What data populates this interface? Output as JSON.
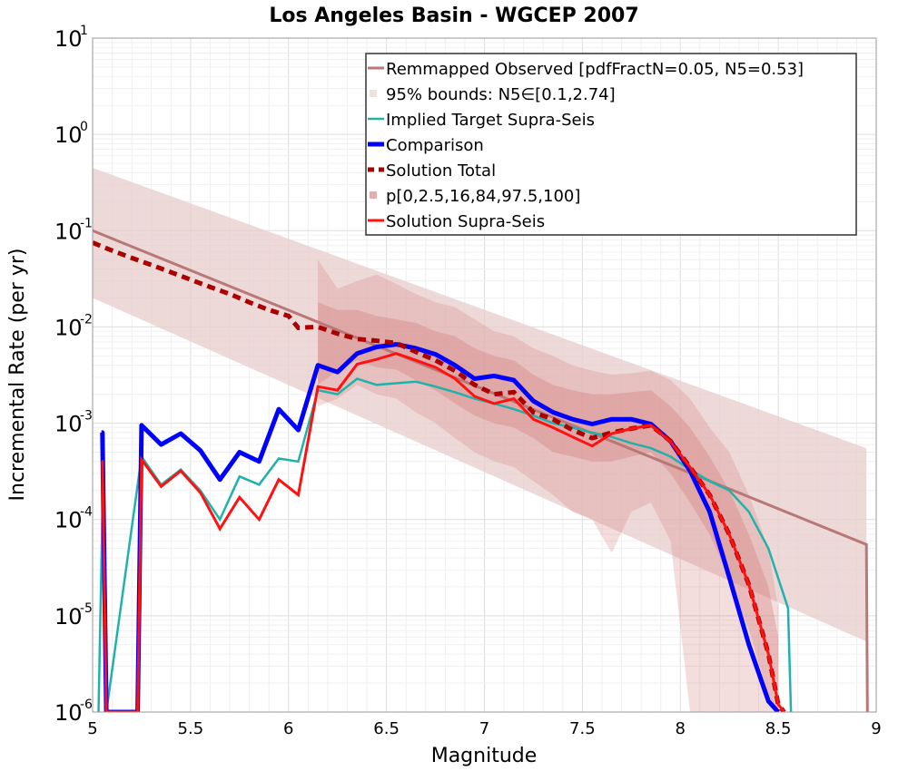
{
  "chart_data": {
    "type": "line",
    "title": "Los Angeles Basin - WGCEP 2007",
    "xlabel": "Magnitude",
    "ylabel": "Incremental Rate (per yr)",
    "xlim": [
      5,
      9
    ],
    "ylim_log10": [
      -6,
      1
    ],
    "xticks": [
      5,
      5.5,
      6,
      6.5,
      7,
      7.5,
      8,
      8.5,
      9
    ],
    "xtick_labels": [
      "5",
      "5.5",
      "6",
      "6.5",
      "7",
      "7.5",
      "8",
      "8.5",
      "9"
    ],
    "ytick_base": "10",
    "ytick_exponents": [
      "1",
      "0",
      "-1",
      "-2",
      "-3",
      "-4",
      "-5",
      "-6"
    ],
    "grid": true,
    "legend_position": "top-right",
    "legend": [
      "Remmapped Observed [pdfFractN=0.05, N5=0.53]",
      "95% bounds: N5∈[0.1,2.74]",
      "Implied Target Supra-Seis",
      "Comparison",
      "Solution Total",
      "p[0,2.5,16,84,97.5,100]",
      "Solution Supra-Seis"
    ],
    "colors": {
      "observed": "#b87878",
      "bounds": "#e8cccc",
      "target": "#20b2aa",
      "comparison": "#0000ff",
      "comparison_tail": "#3300cc",
      "total": "#aa0000",
      "percentile": "#d47878",
      "supra": "#ff1111"
    },
    "series": [
      {
        "name": "Remmapped Observed [pdfFractN=0.05, N5=0.53]",
        "x": [
          5.0,
          8.95,
          8.955
        ],
        "y": [
          0.1,
          5.5e-05,
          1e-06
        ]
      },
      {
        "name": "95% bounds: N5∈[0.1,2.74]",
        "x": [
          5.0,
          8.95
        ],
        "upper": [
          0.45,
          0.00055
        ],
        "lower": [
          0.02,
          5.4e-06
        ]
      },
      {
        "name": "Implied Target Supra-Seis",
        "x": [
          5.03,
          5.05,
          5.07,
          5.25,
          5.35,
          5.45,
          5.55,
          5.65,
          5.75,
          5.85,
          5.95,
          6.05,
          6.15,
          6.25,
          6.35,
          6.45,
          6.55,
          6.65,
          6.75,
          6.85,
          6.95,
          7.05,
          7.15,
          7.25,
          7.35,
          7.45,
          7.55,
          7.65,
          7.75,
          7.85,
          7.95,
          8.05,
          8.15,
          8.25,
          8.35,
          8.45,
          8.55,
          8.565
        ],
        "y": [
          1e-06,
          0.00012,
          1e-06,
          0.00045,
          0.00023,
          0.00033,
          0.0002,
          0.0001,
          0.00028,
          0.00023,
          0.00043,
          0.0004,
          0.0022,
          0.002,
          0.0029,
          0.0025,
          0.0026,
          0.0027,
          0.0024,
          0.0021,
          0.0018,
          0.0016,
          0.0014,
          0.0012,
          0.001,
          0.0009,
          0.0008,
          0.00072,
          0.00062,
          0.00055,
          0.00045,
          0.00033,
          0.00025,
          0.0002,
          0.00012,
          5e-05,
          1.2e-05,
          1e-06
        ]
      },
      {
        "name": "Comparison",
        "x": [
          5.045,
          5.05,
          5.07,
          5.23,
          5.25,
          5.35,
          5.45,
          5.55,
          5.65,
          5.75,
          5.85,
          5.95,
          6.05,
          6.15,
          6.25,
          6.35,
          6.45,
          6.55,
          6.65,
          6.75,
          6.85,
          6.95,
          7.05,
          7.15,
          7.25,
          7.35,
          7.45,
          7.55,
          7.65,
          7.75,
          7.85,
          7.95,
          8.05,
          8.15,
          8.25,
          8.35,
          8.45,
          8.5
        ],
        "y": [
          0.0008,
          0.0008,
          1e-06,
          1e-06,
          0.00095,
          0.0006,
          0.00078,
          0.00052,
          0.00026,
          0.0005,
          0.0004,
          0.0014,
          0.00085,
          0.004,
          0.0034,
          0.0053,
          0.0062,
          0.0066,
          0.006,
          0.0052,
          0.004,
          0.0029,
          0.0031,
          0.0028,
          0.0017,
          0.0013,
          0.0011,
          0.00098,
          0.0011,
          0.0011,
          0.00098,
          0.00065,
          0.00032,
          0.00012,
          2.5e-05,
          5e-06,
          1.3e-06,
          1e-06
        ]
      },
      {
        "name": "Solution Total",
        "x": [
          5.0,
          5.1,
          5.2,
          5.3,
          5.4,
          5.5,
          5.6,
          5.7,
          5.8,
          5.9,
          6.0,
          6.05,
          6.15,
          6.25,
          6.35,
          6.45,
          6.55,
          6.65,
          6.75,
          6.85,
          6.95,
          7.05,
          7.15,
          7.25,
          7.35,
          7.45,
          7.55,
          7.65,
          7.75,
          7.85,
          7.95,
          8.05,
          8.15,
          8.25,
          8.35,
          8.45,
          8.5,
          8.53
        ],
        "y": [
          0.075,
          0.062,
          0.052,
          0.044,
          0.037,
          0.031,
          0.026,
          0.022,
          0.018,
          0.015,
          0.013,
          0.0098,
          0.01,
          0.0085,
          0.0075,
          0.0072,
          0.0068,
          0.0055,
          0.0045,
          0.0035,
          0.0025,
          0.002,
          0.0021,
          0.0013,
          0.0011,
          0.00085,
          0.0007,
          0.0008,
          0.00088,
          0.00095,
          0.00065,
          0.00035,
          0.00018,
          7e-05,
          2.1e-05,
          4e-06,
          1.2e-06,
          1e-06
        ]
      },
      {
        "name": "p[0,2.5,16,84,97.5,100]",
        "x": [
          6.15,
          6.25,
          6.35,
          6.45,
          6.55,
          6.65,
          6.75,
          6.85,
          6.95,
          7.05,
          7.15,
          7.25,
          7.35,
          7.45,
          7.55,
          7.65,
          7.75,
          7.85,
          7.95,
          8.05,
          8.15,
          8.25,
          8.35,
          8.45,
          8.5
        ],
        "p16": [
          0.0025,
          0.0035,
          0.0045,
          0.0038,
          0.0036,
          0.0028,
          0.0022,
          0.0016,
          0.0012,
          0.001,
          0.0009,
          0.0007,
          0.0005,
          0.00045,
          0.0004,
          0.0004,
          0.00045,
          0.0005,
          0.0003,
          0.00015,
          7e-05,
          2.5e-05,
          7e-06,
          1.5e-06,
          1e-06
        ],
        "p84": [
          0.018,
          0.015,
          0.015,
          0.013,
          0.012,
          0.011,
          0.009,
          0.008,
          0.006,
          0.005,
          0.0045,
          0.0032,
          0.0025,
          0.0022,
          0.002,
          0.002,
          0.0021,
          0.0022,
          0.0015,
          0.0009,
          0.00045,
          0.0002,
          7e-05,
          2e-05,
          6e-06
        ],
        "p2_5": [
          0.0015,
          0.0018,
          0.0025,
          0.002,
          0.0018,
          0.0013,
          0.001,
          0.0007,
          0.0005,
          0.0004,
          0.00035,
          0.00025,
          0.00018,
          0.00012,
          0.0001,
          4.5e-05,
          0.00012,
          0.00015,
          6e-05,
          1e-06,
          1e-06,
          1e-06,
          1e-06,
          1e-06,
          1e-06
        ],
        "p97_5": [
          0.05,
          0.025,
          0.03,
          0.035,
          0.028,
          0.022,
          0.018,
          0.016,
          0.012,
          0.009,
          0.008,
          0.006,
          0.005,
          0.004,
          0.0035,
          0.0032,
          0.0033,
          0.0035,
          0.0028,
          0.0018,
          0.0009,
          0.0005,
          0.00018,
          5e-05,
          1.2e-05
        ]
      },
      {
        "name": "Solution Supra-Seis",
        "x": [
          5.045,
          5.05,
          5.07,
          5.23,
          5.25,
          5.35,
          5.45,
          5.55,
          5.65,
          5.75,
          5.85,
          5.95,
          6.05,
          6.15,
          6.25,
          6.35,
          6.45,
          6.55,
          6.65,
          6.75,
          6.85,
          6.95,
          7.05,
          7.15,
          7.25,
          7.35,
          7.45,
          7.55,
          7.65,
          7.75,
          7.85,
          7.95,
          8.05,
          8.15,
          8.25,
          8.35,
          8.45,
          8.5,
          8.53
        ],
        "y": [
          0.0004,
          0.0004,
          1e-06,
          1e-06,
          0.00042,
          0.00022,
          0.00032,
          0.00019,
          8e-05,
          0.00017,
          0.0001,
          0.00026,
          0.00018,
          0.0024,
          0.0022,
          0.0041,
          0.0046,
          0.0053,
          0.0045,
          0.0038,
          0.0029,
          0.0019,
          0.0016,
          0.0018,
          0.0011,
          0.0009,
          0.00072,
          0.00058,
          0.00078,
          0.00088,
          0.00095,
          0.00064,
          0.00035,
          0.00018,
          7e-05,
          2.1e-05,
          4e-06,
          1.2e-06,
          1e-06
        ]
      }
    ]
  }
}
